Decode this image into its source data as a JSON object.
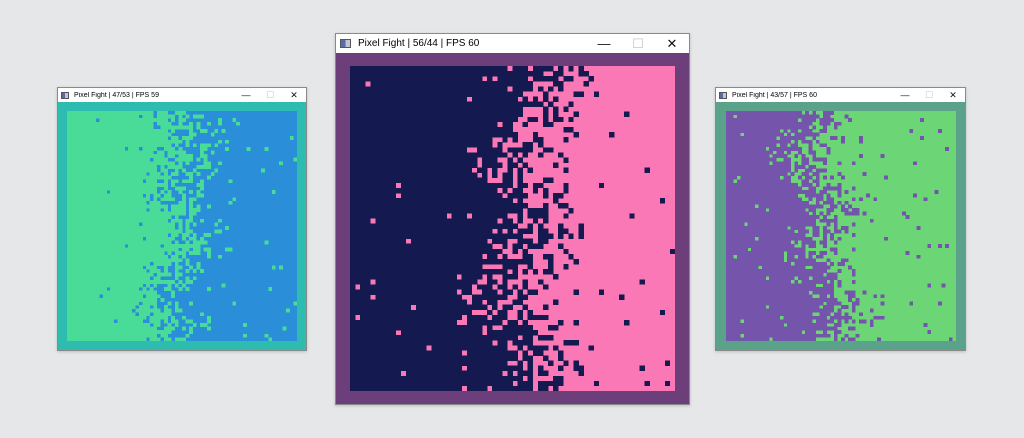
{
  "windows": [
    {
      "id": "w1",
      "title": "Pixel Fight | 47/53 | FPS 59",
      "controls": {
        "minimize": "—",
        "maximize": "☐",
        "close": "✕"
      },
      "colors": {
        "border": "#2ebcb0",
        "left_team": "#48dc98",
        "right_team": "#2a8ed8"
      },
      "field": {
        "grid": [
          64,
          64
        ],
        "left_share": 0.47
      }
    },
    {
      "id": "w2",
      "title": "Pixel Fight | 56/44 | FPS 60",
      "controls": {
        "minimize": "—",
        "maximize": "☐",
        "close": "✕"
      },
      "colors": {
        "border": "#6c3f7a",
        "left_team": "#141a50",
        "right_team": "#fb78b6"
      },
      "field": {
        "grid": [
          64,
          64
        ],
        "left_share": 0.56
      }
    },
    {
      "id": "w3",
      "title": "Pixel Fight | 43/57 | FPS 60",
      "controls": {
        "minimize": "—",
        "maximize": "☐",
        "close": "✕"
      },
      "colors": {
        "border": "#5aa38a",
        "left_team": "#7455ab",
        "right_team": "#6cd677"
      },
      "field": {
        "grid": [
          64,
          64
        ],
        "left_share": 0.43
      }
    }
  ]
}
